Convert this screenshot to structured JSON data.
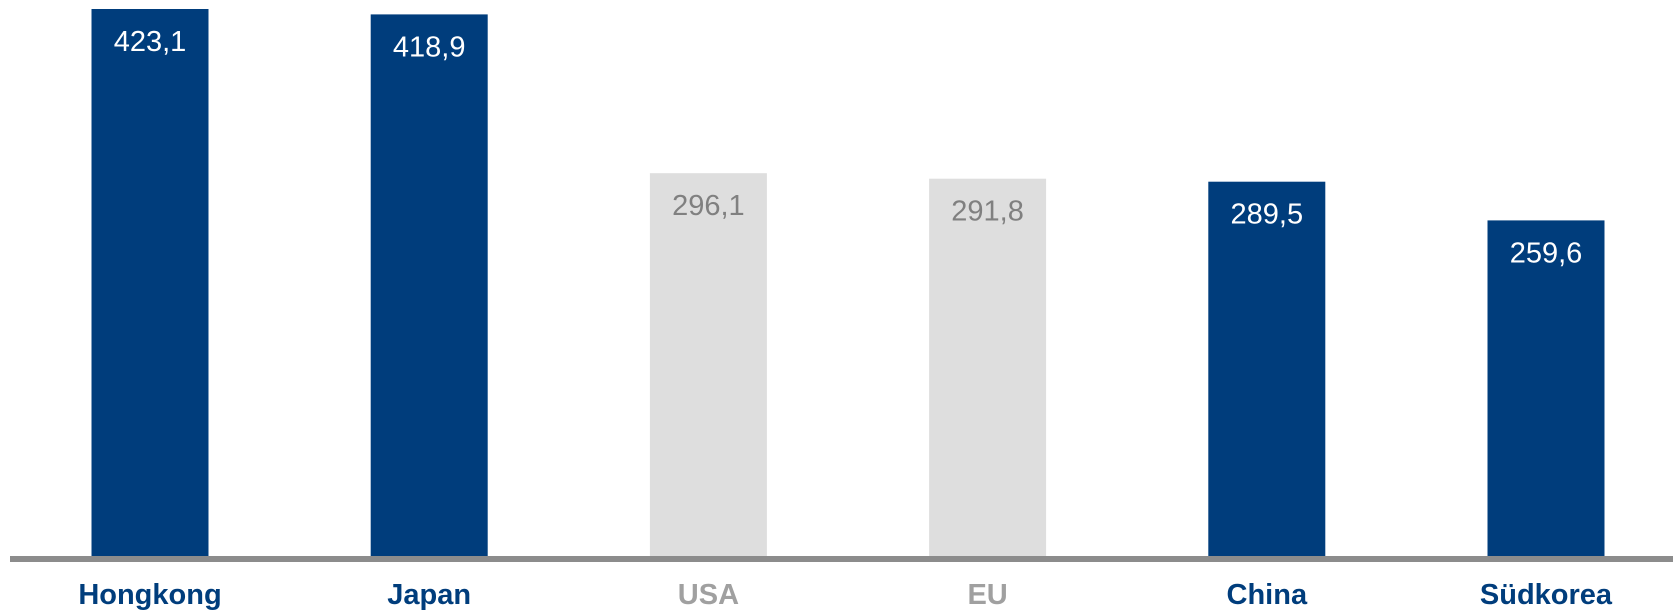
{
  "chart_data": {
    "type": "bar",
    "title": "",
    "xlabel": "",
    "ylabel": "",
    "grid": false,
    "legend": "none",
    "ylim": [
      0,
      423.1
    ],
    "categories": [
      "Hongkong",
      "Japan",
      "USA",
      "EU",
      "China",
      "Südkorea"
    ],
    "values": [
      423.1,
      418.9,
      296.1,
      291.8,
      289.5,
      259.6
    ],
    "value_labels": [
      "423,1",
      "418,9",
      "296,1",
      "291,8",
      "289,5",
      "259,6"
    ],
    "highlight": [
      true,
      true,
      false,
      false,
      true,
      true
    ]
  },
  "colors": {
    "highlight_bar": "#003d7c",
    "muted_bar": "#dedede",
    "highlight_label_text": "#ffffff",
    "muted_label_text": "#808080",
    "highlight_category_text": "#003d7c",
    "muted_category_text": "#a0a0a0",
    "baseline": "#8c8c8c"
  }
}
